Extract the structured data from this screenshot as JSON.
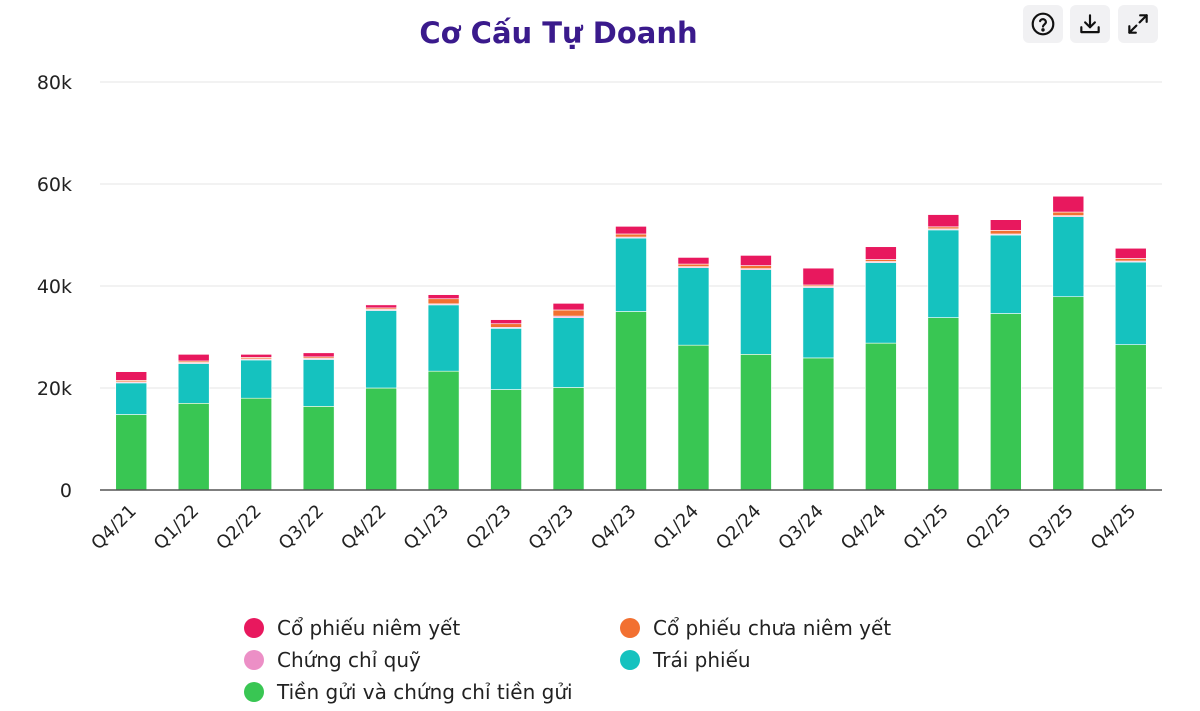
{
  "header": {
    "title": "Cơ Cấu Tự Doanh",
    "tools": [
      {
        "name": "help-button",
        "icon": "help-circle-icon"
      },
      {
        "name": "download-button",
        "icon": "download-icon"
      },
      {
        "name": "expand-button",
        "icon": "expand-icon"
      }
    ]
  },
  "colors": {
    "title": "#3a1a8c",
    "co_phieu_niem_yet": "#e8185e",
    "co_phieu_chua_niem_yet": "#f27031",
    "chung_chi_quy": "#ec8fc6",
    "trai_phieu": "#15c2bf",
    "tien_gui": "#39c653",
    "gridline": "#e6e6e6",
    "axis": "#555555"
  },
  "legend": [
    {
      "label": "Cổ phiếu niêm yết",
      "color": "#e8185e"
    },
    {
      "label": "Cổ phiếu chưa niêm yết",
      "color": "#f27031"
    },
    {
      "label": "Chứng chỉ quỹ",
      "color": "#ec8fc6"
    },
    {
      "label": "Trái phiếu",
      "color": "#15c2bf"
    },
    {
      "label": "Tiền gửi và chứng chỉ tiền gửi",
      "color": "#39c653"
    }
  ],
  "chart_data": {
    "type": "bar",
    "stacked": true,
    "title": "Cơ Cấu Tự Doanh",
    "xlabel": "",
    "ylabel": "",
    "ylim": [
      0,
      80000
    ],
    "yticks": [
      0,
      20000,
      40000,
      60000,
      80000
    ],
    "ytick_labels": [
      "0",
      "20k",
      "40k",
      "60k",
      "80k"
    ],
    "grid": true,
    "legend_position": "bottom",
    "categories": [
      "Q4/21",
      "Q1/22",
      "Q2/22",
      "Q3/22",
      "Q4/22",
      "Q1/23",
      "Q2/23",
      "Q3/23",
      "Q4/23",
      "Q1/24",
      "Q2/24",
      "Q3/24",
      "Q4/24",
      "Q1/25",
      "Q2/25",
      "Q3/25",
      "Q4/25"
    ],
    "series": [
      {
        "name": "Tiền gửi và chứng chỉ tiền gửi",
        "color": "#39c653",
        "values": [
          14800,
          17000,
          18000,
          16400,
          20000,
          23300,
          19700,
          20100,
          35000,
          28400,
          26600,
          25900,
          28800,
          33800,
          34600,
          37900,
          28500
        ]
      },
      {
        "name": "Trái phiếu",
        "color": "#15c2bf",
        "values": [
          6200,
          7800,
          7500,
          9200,
          15200,
          13000,
          12000,
          13700,
          14400,
          15200,
          16600,
          13800,
          15800,
          17200,
          15400,
          15700,
          16200
        ]
      },
      {
        "name": "Chứng chỉ quỹ",
        "color": "#ec8fc6",
        "values": [
          200,
          200,
          200,
          200,
          200,
          200,
          200,
          300,
          200,
          200,
          200,
          200,
          200,
          200,
          200,
          200,
          200
        ]
      },
      {
        "name": "Cổ phiếu chưa niêm yết",
        "color": "#f27031",
        "values": [
          300,
          300,
          300,
          300,
          300,
          1000,
          700,
          1200,
          600,
          500,
          600,
          300,
          400,
          400,
          700,
          700,
          500
        ]
      },
      {
        "name": "Cổ phiếu niêm yết",
        "color": "#e8185e",
        "values": [
          1700,
          1300,
          600,
          800,
          600,
          800,
          800,
          1300,
          1500,
          1300,
          2000,
          3300,
          2500,
          2400,
          2100,
          3100,
          2000
        ]
      }
    ]
  }
}
